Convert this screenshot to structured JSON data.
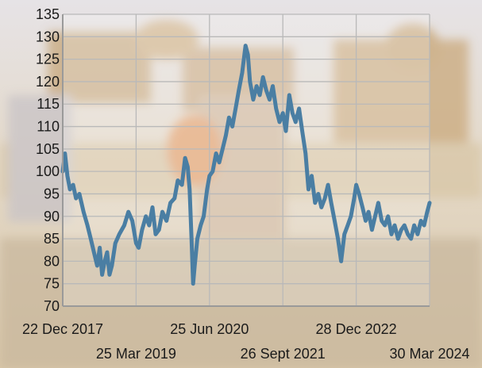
{
  "chart_data": {
    "type": "line",
    "title": "",
    "xlabel": "",
    "ylabel": "",
    "ylim": [
      70,
      135
    ],
    "yticks": [
      70,
      75,
      80,
      85,
      90,
      95,
      100,
      105,
      110,
      115,
      120,
      125,
      130,
      135
    ],
    "xlim": [
      "2017-12-22",
      "2024-03-30"
    ],
    "xtick_labels": [
      {
        "date": "2017-12-22",
        "label": "22 Dec 2017",
        "row": 1
      },
      {
        "date": "2019-03-25",
        "label": "25 Mar 2019",
        "row": 2
      },
      {
        "date": "2020-06-25",
        "label": "25 Jun 2020",
        "row": 1
      },
      {
        "date": "2021-09-26",
        "label": "26 Sept 2021",
        "row": 2
      },
      {
        "date": "2022-12-28",
        "label": "28 Dec 2022",
        "row": 1
      },
      {
        "date": "2024-03-30",
        "label": "30 Mar 2024",
        "row": 2
      }
    ],
    "grid": true,
    "series": [
      {
        "color": "#4a7ea3",
        "points": [
          [
            "2017-12-22",
            100
          ],
          [
            "2018-01-05",
            104
          ],
          [
            "2018-01-20",
            99
          ],
          [
            "2018-02-05",
            96
          ],
          [
            "2018-02-25",
            97
          ],
          [
            "2018-03-15",
            94
          ],
          [
            "2018-04-05",
            95
          ],
          [
            "2018-05-01",
            91
          ],
          [
            "2018-05-25",
            88
          ],
          [
            "2018-06-15",
            85
          ],
          [
            "2018-07-05",
            82
          ],
          [
            "2018-07-25",
            79
          ],
          [
            "2018-08-10",
            83
          ],
          [
            "2018-08-25",
            77
          ],
          [
            "2018-09-10",
            80
          ],
          [
            "2018-09-25",
            82
          ],
          [
            "2018-10-10",
            77
          ],
          [
            "2018-10-25",
            79
          ],
          [
            "2018-11-15",
            84
          ],
          [
            "2018-12-10",
            86
          ],
          [
            "2019-01-10",
            88
          ],
          [
            "2019-02-05",
            91
          ],
          [
            "2019-03-01",
            89
          ],
          [
            "2019-03-25",
            84
          ],
          [
            "2019-04-10",
            83
          ],
          [
            "2019-05-01",
            87
          ],
          [
            "2019-05-25",
            90
          ],
          [
            "2019-06-15",
            88
          ],
          [
            "2019-07-05",
            92
          ],
          [
            "2019-07-25",
            86
          ],
          [
            "2019-08-15",
            87
          ],
          [
            "2019-09-05",
            91
          ],
          [
            "2019-10-01",
            89
          ],
          [
            "2019-10-25",
            93
          ],
          [
            "2019-11-20",
            94
          ],
          [
            "2019-12-10",
            98
          ],
          [
            "2020-01-05",
            97
          ],
          [
            "2020-01-25",
            103
          ],
          [
            "2020-02-10",
            101
          ],
          [
            "2020-02-22",
            96
          ],
          [
            "2020-03-05",
            85
          ],
          [
            "2020-03-15",
            75
          ],
          [
            "2020-03-25",
            79
          ],
          [
            "2020-04-10",
            85
          ],
          [
            "2020-05-01",
            88
          ],
          [
            "2020-05-20",
            90
          ],
          [
            "2020-06-10",
            96
          ],
          [
            "2020-06-25",
            99
          ],
          [
            "2020-07-15",
            100
          ],
          [
            "2020-08-05",
            104
          ],
          [
            "2020-08-25",
            102
          ],
          [
            "2020-09-15",
            105
          ],
          [
            "2020-10-05",
            108
          ],
          [
            "2020-10-25",
            112
          ],
          [
            "2020-11-15",
            110
          ],
          [
            "2020-12-05",
            114
          ],
          [
            "2020-12-25",
            118
          ],
          [
            "2021-01-15",
            122
          ],
          [
            "2021-02-05",
            128
          ],
          [
            "2021-02-20",
            126
          ],
          [
            "2021-03-05",
            120
          ],
          [
            "2021-03-25",
            116
          ],
          [
            "2021-04-15",
            119
          ],
          [
            "2021-05-05",
            117
          ],
          [
            "2021-05-25",
            121
          ],
          [
            "2021-06-15",
            118
          ],
          [
            "2021-07-05",
            116
          ],
          [
            "2021-07-25",
            119
          ],
          [
            "2021-08-15",
            114
          ],
          [
            "2021-09-05",
            111
          ],
          [
            "2021-09-26",
            113
          ],
          [
            "2021-10-15",
            109
          ],
          [
            "2021-11-05",
            117
          ],
          [
            "2021-11-25",
            113
          ],
          [
            "2021-12-15",
            111
          ],
          [
            "2022-01-05",
            114
          ],
          [
            "2022-01-25",
            109
          ],
          [
            "2022-02-15",
            104
          ],
          [
            "2022-03-05",
            96
          ],
          [
            "2022-03-25",
            99
          ],
          [
            "2022-04-15",
            93
          ],
          [
            "2022-05-05",
            95
          ],
          [
            "2022-05-25",
            92
          ],
          [
            "2022-06-15",
            94
          ],
          [
            "2022-07-05",
            97
          ],
          [
            "2022-07-25",
            93
          ],
          [
            "2022-08-15",
            89
          ],
          [
            "2022-09-05",
            85
          ],
          [
            "2022-09-25",
            80
          ],
          [
            "2022-10-15",
            86
          ],
          [
            "2022-11-05",
            88
          ],
          [
            "2022-11-25",
            90
          ],
          [
            "2022-12-15",
            94
          ],
          [
            "2022-12-28",
            97
          ],
          [
            "2023-01-15",
            95
          ],
          [
            "2023-02-05",
            92
          ],
          [
            "2023-02-25",
            89
          ],
          [
            "2023-03-15",
            91
          ],
          [
            "2023-04-05",
            87
          ],
          [
            "2023-04-25",
            90
          ],
          [
            "2023-05-15",
            93
          ],
          [
            "2023-06-05",
            89
          ],
          [
            "2023-06-25",
            88
          ],
          [
            "2023-07-15",
            90
          ],
          [
            "2023-08-05",
            86
          ],
          [
            "2023-08-25",
            88
          ],
          [
            "2023-09-15",
            85
          ],
          [
            "2023-10-05",
            87
          ],
          [
            "2023-10-25",
            88
          ],
          [
            "2023-11-15",
            86
          ],
          [
            "2023-12-05",
            85
          ],
          [
            "2023-12-25",
            88
          ],
          [
            "2024-01-15",
            86
          ],
          [
            "2024-02-05",
            89
          ],
          [
            "2024-02-25",
            88
          ],
          [
            "2024-03-15",
            91
          ],
          [
            "2024-03-30",
            93
          ]
        ]
      }
    ]
  }
}
